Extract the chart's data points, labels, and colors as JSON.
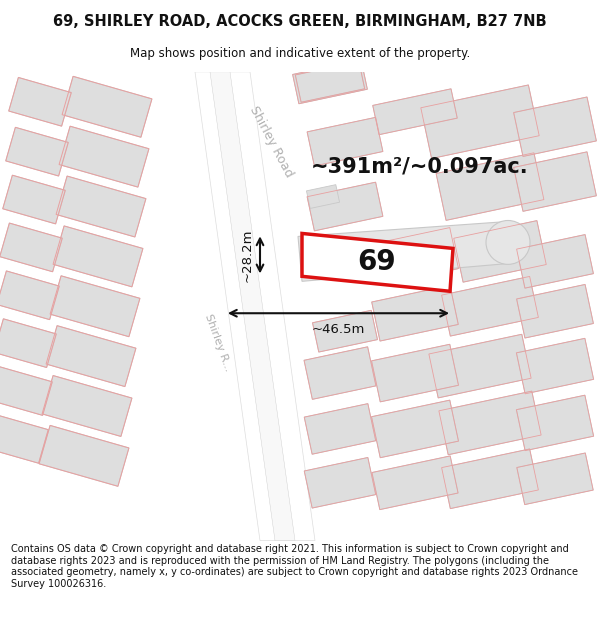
{
  "title_line1": "69, SHIRLEY ROAD, ACOCKS GREEN, BIRMINGHAM, B27 7NB",
  "title_line2": "Map shows position and indicative extent of the property.",
  "footer_text": "Contains OS data © Crown copyright and database right 2021. This information is subject to Crown copyright and database rights 2023 and is reproduced with the permission of HM Land Registry. The polygons (including the associated geometry, namely x, y co-ordinates) are subject to Crown copyright and database rights 2023 Ordnance Survey 100026316.",
  "area_label": "~391m²/~0.097ac.",
  "width_label": "~46.5m",
  "height_label": "~28.2m",
  "number_label": "69",
  "map_bg": "#f7f5f4",
  "building_fill": "#dedede",
  "building_stroke": "#c8c8c8",
  "road_fill": "#ffffff",
  "highlight_stroke": "#dd1111",
  "dim_line_color": "#111111",
  "road_label_color": "#b0b0b0",
  "text_color": "#111111",
  "title_fontsize": 10.5,
  "subtitle_fontsize": 8.5,
  "footer_fontsize": 7.0
}
